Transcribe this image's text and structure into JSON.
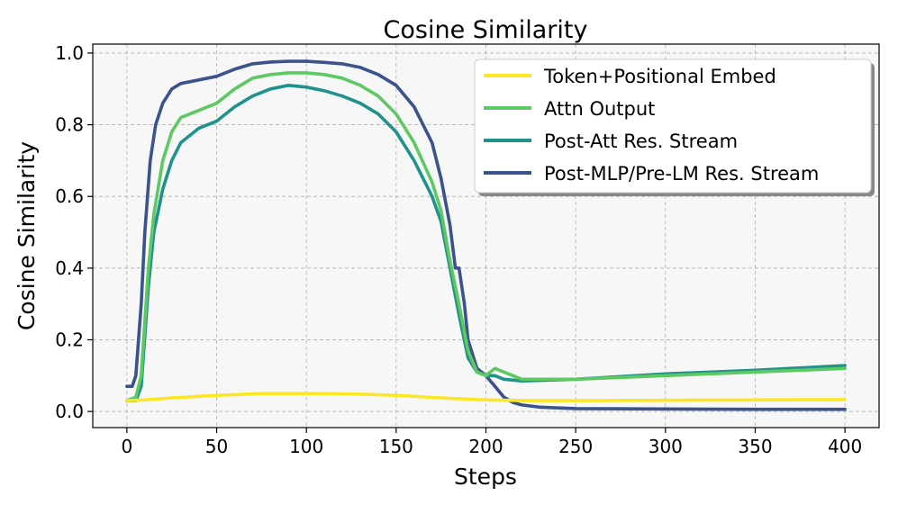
{
  "chart_data": {
    "type": "line",
    "title": "Cosine Similarity",
    "xlabel": "Steps",
    "ylabel": "Cosine Similarity",
    "xlim": [
      -19,
      419
    ],
    "ylim": [
      -0.045,
      1.025
    ],
    "xticks": [
      0,
      50,
      100,
      150,
      200,
      250,
      300,
      350,
      400
    ],
    "xtick_labels": [
      "0",
      "50",
      "100",
      "150",
      "200",
      "250",
      "300",
      "350",
      "400"
    ],
    "yticks": [
      0.0,
      0.2,
      0.4,
      0.6,
      0.8,
      1.0
    ],
    "ytick_labels": [
      "0.0",
      "0.2",
      "0.4",
      "0.6",
      "0.8",
      "1.0"
    ],
    "grid": true,
    "legend_position": "top-right",
    "series": [
      {
        "name": "Token+Positional Embed",
        "color": "#fde725",
        "points": [
          [
            0,
            0.03
          ],
          [
            10,
            0.032
          ],
          [
            25,
            0.038
          ],
          [
            50,
            0.045
          ],
          [
            75,
            0.05
          ],
          [
            100,
            0.05
          ],
          [
            125,
            0.049
          ],
          [
            150,
            0.045
          ],
          [
            175,
            0.038
          ],
          [
            200,
            0.032
          ],
          [
            225,
            0.03
          ],
          [
            250,
            0.03
          ],
          [
            300,
            0.031
          ],
          [
            350,
            0.032
          ],
          [
            400,
            0.033
          ]
        ]
      },
      {
        "name": "Attn Output",
        "color": "#5ec962",
        "points": [
          [
            0,
            0.03
          ],
          [
            5,
            0.04
          ],
          [
            8,
            0.1
          ],
          [
            12,
            0.4
          ],
          [
            15,
            0.55
          ],
          [
            20,
            0.7
          ],
          [
            25,
            0.78
          ],
          [
            30,
            0.82
          ],
          [
            40,
            0.84
          ],
          [
            50,
            0.86
          ],
          [
            60,
            0.9
          ],
          [
            70,
            0.93
          ],
          [
            80,
            0.94
          ],
          [
            90,
            0.945
          ],
          [
            100,
            0.945
          ],
          [
            110,
            0.94
          ],
          [
            120,
            0.93
          ],
          [
            130,
            0.91
          ],
          [
            140,
            0.88
          ],
          [
            150,
            0.83
          ],
          [
            160,
            0.75
          ],
          [
            170,
            0.64
          ],
          [
            175,
            0.56
          ],
          [
            180,
            0.42
          ],
          [
            185,
            0.3
          ],
          [
            190,
            0.17
          ],
          [
            195,
            0.11
          ],
          [
            200,
            0.1
          ],
          [
            205,
            0.12
          ],
          [
            210,
            0.11
          ],
          [
            220,
            0.09
          ],
          [
            250,
            0.09
          ],
          [
            300,
            0.1
          ],
          [
            350,
            0.11
          ],
          [
            400,
            0.12
          ]
        ]
      },
      {
        "name": "Post-Att Res. Stream",
        "color": "#21918c",
        "points": [
          [
            0,
            0.03
          ],
          [
            5,
            0.03
          ],
          [
            8,
            0.07
          ],
          [
            12,
            0.35
          ],
          [
            15,
            0.5
          ],
          [
            20,
            0.62
          ],
          [
            25,
            0.7
          ],
          [
            30,
            0.75
          ],
          [
            40,
            0.79
          ],
          [
            50,
            0.81
          ],
          [
            60,
            0.85
          ],
          [
            70,
            0.88
          ],
          [
            80,
            0.9
          ],
          [
            90,
            0.91
          ],
          [
            100,
            0.905
          ],
          [
            110,
            0.895
          ],
          [
            120,
            0.88
          ],
          [
            130,
            0.86
          ],
          [
            140,
            0.83
          ],
          [
            150,
            0.78
          ],
          [
            160,
            0.7
          ],
          [
            170,
            0.6
          ],
          [
            175,
            0.53
          ],
          [
            180,
            0.4
          ],
          [
            185,
            0.27
          ],
          [
            190,
            0.15
          ],
          [
            195,
            0.11
          ],
          [
            200,
            0.1
          ],
          [
            205,
            0.1
          ],
          [
            210,
            0.09
          ],
          [
            220,
            0.085
          ],
          [
            250,
            0.09
          ],
          [
            300,
            0.105
          ],
          [
            350,
            0.115
          ],
          [
            400,
            0.128
          ]
        ]
      },
      {
        "name": "Post-MLP/Pre-LM Res. Stream",
        "color": "#3b528b",
        "points": [
          [
            0,
            0.07
          ],
          [
            3,
            0.07
          ],
          [
            5,
            0.1
          ],
          [
            8,
            0.3
          ],
          [
            10,
            0.5
          ],
          [
            13,
            0.7
          ],
          [
            16,
            0.8
          ],
          [
            20,
            0.86
          ],
          [
            25,
            0.9
          ],
          [
            30,
            0.915
          ],
          [
            40,
            0.925
          ],
          [
            50,
            0.935
          ],
          [
            60,
            0.955
          ],
          [
            70,
            0.97
          ],
          [
            80,
            0.975
          ],
          [
            90,
            0.977
          ],
          [
            100,
            0.977
          ],
          [
            110,
            0.974
          ],
          [
            120,
            0.97
          ],
          [
            130,
            0.96
          ],
          [
            140,
            0.94
          ],
          [
            150,
            0.91
          ],
          [
            160,
            0.85
          ],
          [
            170,
            0.75
          ],
          [
            175,
            0.65
          ],
          [
            180,
            0.52
          ],
          [
            183,
            0.4
          ],
          [
            185,
            0.4
          ],
          [
            188,
            0.3
          ],
          [
            190,
            0.2
          ],
          [
            195,
            0.12
          ],
          [
            200,
            0.1
          ],
          [
            205,
            0.07
          ],
          [
            210,
            0.04
          ],
          [
            215,
            0.025
          ],
          [
            220,
            0.018
          ],
          [
            230,
            0.012
          ],
          [
            250,
            0.008
          ],
          [
            300,
            0.007
          ],
          [
            350,
            0.006
          ],
          [
            400,
            0.006
          ]
        ]
      }
    ]
  }
}
